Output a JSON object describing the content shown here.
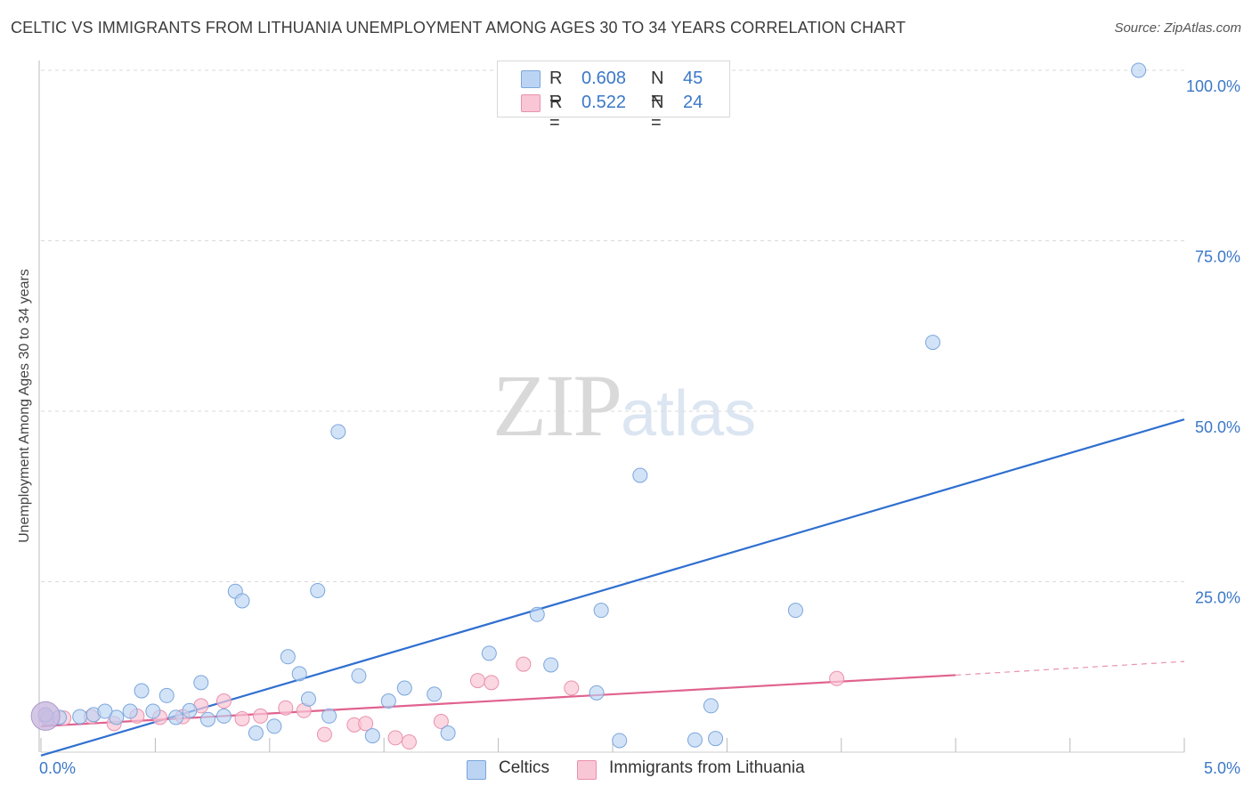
{
  "header": {
    "title": "CELTIC VS IMMIGRANTS FROM LITHUANIA UNEMPLOYMENT AMONG AGES 30 TO 34 YEARS CORRELATION CHART",
    "source": "Source: ZipAtlas.com"
  },
  "watermark": {
    "zip": "ZIP",
    "atlas": "atlas"
  },
  "legend": {
    "rows": [
      {
        "r_label": "R =",
        "r_value": "0.608",
        "n_label": "N =",
        "n_value": "45"
      },
      {
        "r_label": "R =",
        "r_value": "0.522",
        "n_label": "N =",
        "n_value": "24"
      }
    ],
    "bottom": [
      "Celtics",
      "Immigrants from Lithuania"
    ]
  },
  "colors": {
    "celtics_fill": "#bcd4f3",
    "celtics_stroke": "#7aa6dc",
    "celtics_line": "#2f6fd0",
    "lith_fill": "#f9c6d6",
    "lith_stroke": "#e892ad",
    "lith_line": "#e0628f",
    "accent_text": "#3b78c8",
    "grid": "#d9d9d9"
  },
  "chart_data": {
    "type": "scatter",
    "title": "CELTIC VS IMMIGRANTS FROM LITHUANIA UNEMPLOYMENT AMONG AGES 30 TO 34 YEARS CORRELATION CHART",
    "xlabel": "",
    "ylabel": "Unemployment Among Ages 30 to 34 years",
    "xlim": [
      0,
      5
    ],
    "ylim": [
      0,
      100
    ],
    "x_tick_labels": [
      "0.0%",
      "5.0%"
    ],
    "y_tick_labels": [
      "100.0%",
      "75.0%",
      "50.0%",
      "25.0%"
    ],
    "y_tick_values": [
      100,
      75,
      50,
      25
    ],
    "grid": true,
    "series": [
      {
        "name": "Celtics",
        "R": 0.608,
        "N": 45,
        "points": [
          [
            0.03,
            5.0
          ],
          [
            0.08,
            5.1
          ],
          [
            0.17,
            5.2
          ],
          [
            0.23,
            5.5
          ],
          [
            0.33,
            5.1
          ],
          [
            0.28,
            6.0
          ],
          [
            0.39,
            6.0
          ],
          [
            0.44,
            9.0
          ],
          [
            0.49,
            6.0
          ],
          [
            0.55,
            8.3
          ],
          [
            0.59,
            5.1
          ],
          [
            0.65,
            6.1
          ],
          [
            0.7,
            10.2
          ],
          [
            0.73,
            4.8
          ],
          [
            0.8,
            5.3
          ],
          [
            0.85,
            23.6
          ],
          [
            0.88,
            22.2
          ],
          [
            0.94,
            2.8
          ],
          [
            1.02,
            3.8
          ],
          [
            1.08,
            14.0
          ],
          [
            1.13,
            11.5
          ],
          [
            1.17,
            7.8
          ],
          [
            1.21,
            23.7
          ],
          [
            1.26,
            5.3
          ],
          [
            1.3,
            47.0
          ],
          [
            1.39,
            11.2
          ],
          [
            1.45,
            2.4
          ],
          [
            1.52,
            7.5
          ],
          [
            1.59,
            9.4
          ],
          [
            1.72,
            8.5
          ],
          [
            1.78,
            2.8
          ],
          [
            1.96,
            14.5
          ],
          [
            2.17,
            20.2
          ],
          [
            2.23,
            12.8
          ],
          [
            2.43,
            8.7
          ],
          [
            2.45,
            20.8
          ],
          [
            2.53,
            1.7
          ],
          [
            2.62,
            40.6
          ],
          [
            2.86,
            1.8
          ],
          [
            2.93,
            6.8
          ],
          [
            2.95,
            2.0
          ],
          [
            3.3,
            20.8
          ],
          [
            3.9,
            60.1
          ],
          [
            4.8,
            100.0
          ],
          [
            0.02,
            5.5
          ]
        ],
        "trend": {
          "x0": 0.0,
          "y0": -0.5,
          "x1": 5.0,
          "y1": 48.8
        }
      },
      {
        "name": "Immigrants from Lithuania",
        "R": 0.522,
        "N": 24,
        "points": [
          [
            0.02,
            5.3
          ],
          [
            0.1,
            5.0
          ],
          [
            0.22,
            5.2
          ],
          [
            0.32,
            4.2
          ],
          [
            0.42,
            5.3
          ],
          [
            0.52,
            5.1
          ],
          [
            0.62,
            5.2
          ],
          [
            0.7,
            6.8
          ],
          [
            0.8,
            7.5
          ],
          [
            0.88,
            4.9
          ],
          [
            0.96,
            5.3
          ],
          [
            1.07,
            6.5
          ],
          [
            1.15,
            6.1
          ],
          [
            1.24,
            2.6
          ],
          [
            1.37,
            4.0
          ],
          [
            1.42,
            4.2
          ],
          [
            1.55,
            2.1
          ],
          [
            1.61,
            1.5
          ],
          [
            1.75,
            4.5
          ],
          [
            1.91,
            10.5
          ],
          [
            1.97,
            10.2
          ],
          [
            2.11,
            12.9
          ],
          [
            2.32,
            9.4
          ],
          [
            3.48,
            10.8
          ]
        ],
        "trend": {
          "x0": 0.0,
          "y0": 3.8,
          "x1": 4.0,
          "y1": 11.3
        },
        "trend_dashed_extension": {
          "x0": 4.0,
          "y0": 11.3,
          "x1": 5.0,
          "y1": 13.3
        }
      }
    ]
  }
}
